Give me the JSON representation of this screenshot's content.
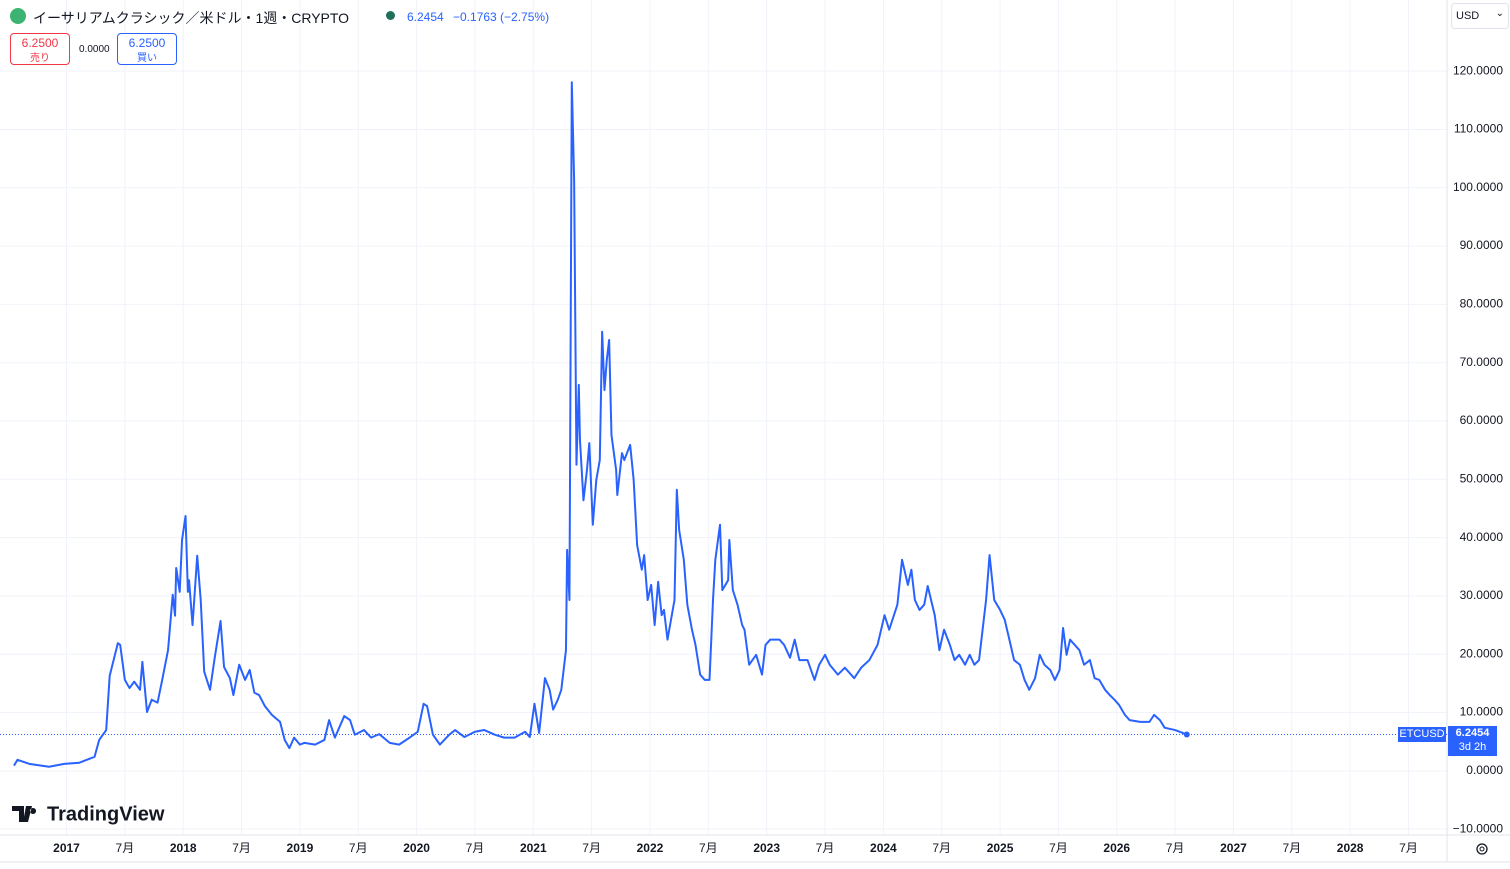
{
  "header": {
    "title": "イーサリアムクラシック／米ドル・1週・CRYPTO",
    "price": "6.2454",
    "change": "−0.1763 (−2.75%)",
    "sell_price": "6.2500",
    "sell_label": "売り",
    "spread": "0.0000",
    "buy_price": "6.2500",
    "buy_label": "買い",
    "currency": "USD",
    "symbol": "ETCUSD",
    "countdown": "3d 2h",
    "logo": "TradingView"
  },
  "chart_data": {
    "type": "line",
    "grid": true,
    "xlim": [
      2016.43,
      2028.83
    ],
    "xticks": [
      {
        "value": 2017,
        "label": "2017"
      },
      {
        "value": 2017.5,
        "label": "7月"
      },
      {
        "value": 2018,
        "label": "2018"
      },
      {
        "value": 2018.5,
        "label": "7月"
      },
      {
        "value": 2019,
        "label": "2019"
      },
      {
        "value": 2019.5,
        "label": "7月"
      },
      {
        "value": 2020,
        "label": "2020"
      },
      {
        "value": 2020.5,
        "label": "7月"
      },
      {
        "value": 2021,
        "label": "2021"
      },
      {
        "value": 2021.5,
        "label": "7月"
      },
      {
        "value": 2022,
        "label": "2022"
      },
      {
        "value": 2022.5,
        "label": "7月"
      },
      {
        "value": 2023,
        "label": "2023"
      },
      {
        "value": 2023.5,
        "label": "7月"
      },
      {
        "value": 2024,
        "label": "2024"
      },
      {
        "value": 2024.5,
        "label": "7月"
      },
      {
        "value": 2025,
        "label": "2025"
      },
      {
        "value": 2025.5,
        "label": "7月"
      },
      {
        "value": 2026,
        "label": "2026"
      },
      {
        "value": 2026.5,
        "label": "7月"
      },
      {
        "value": 2027,
        "label": "2027"
      },
      {
        "value": 2027.5,
        "label": "7月"
      },
      {
        "value": 2028,
        "label": "2028"
      },
      {
        "value": 2028.5,
        "label": "7月"
      }
    ],
    "ylim": [
      -11,
      132.2
    ],
    "yticks": [
      {
        "value": 120,
        "label": "120.0000"
      },
      {
        "value": 110,
        "label": "110.0000"
      },
      {
        "value": 100,
        "label": "100.0000"
      },
      {
        "value": 90,
        "label": "90.0000"
      },
      {
        "value": 80,
        "label": "80.0000"
      },
      {
        "value": 70,
        "label": "70.0000"
      },
      {
        "value": 60,
        "label": "60.0000"
      },
      {
        "value": 50,
        "label": "50.0000"
      },
      {
        "value": 40,
        "label": "40.0000"
      },
      {
        "value": 30,
        "label": "30.0000"
      },
      {
        "value": 20,
        "label": "20.0000"
      },
      {
        "value": 10,
        "label": "10.0000"
      },
      {
        "value": 0,
        "label": "0.0000"
      },
      {
        "value": -10,
        "label": "−10.0000"
      }
    ],
    "series": [
      {
        "color": "#2962ff",
        "x": [
          2016.55,
          2016.58,
          2016.68,
          2016.85,
          2016.98,
          2017.11,
          2017.24,
          2017.28,
          2017.34,
          2017.37,
          2017.44,
          2017.46,
          2017.5,
          2017.54,
          2017.58,
          2017.63,
          2017.65,
          2017.69,
          2017.73,
          2017.78,
          2017.82,
          2017.87,
          2017.91,
          2017.93,
          2017.94,
          2017.97,
          2017.99,
          2018.02,
          2018.04,
          2018.05,
          2018.08,
          2018.12,
          2018.15,
          2018.18,
          2018.23,
          2018.27,
          2018.32,
          2018.35,
          2018.4,
          2018.43,
          2018.48,
          2018.53,
          2018.57,
          2018.61,
          2018.65,
          2018.7,
          2018.76,
          2018.83,
          2018.87,
          2018.91,
          2018.95,
          2019.0,
          2019.04,
          2019.13,
          2019.21,
          2019.25,
          2019.3,
          2019.38,
          2019.43,
          2019.47,
          2019.55,
          2019.61,
          2019.68,
          2019.77,
          2019.85,
          2019.94,
          2020.01,
          2020.06,
          2020.09,
          2020.14,
          2020.2,
          2020.28,
          2020.33,
          2020.41,
          2020.5,
          2020.58,
          2020.67,
          2020.75,
          2020.84,
          2020.93,
          2020.97,
          2021.01,
          2021.05,
          2021.1,
          2021.14,
          2021.17,
          2021.21,
          2021.24,
          2021.28,
          2021.29,
          2021.31,
          2021.33,
          2021.35,
          2021.37,
          2021.39,
          2021.4,
          2021.43,
          2021.46,
          2021.48,
          2021.51,
          2021.54,
          2021.57,
          2021.59,
          2021.61,
          2021.63,
          2021.65,
          2021.67,
          2021.71,
          2021.72,
          2021.76,
          2021.78,
          2021.83,
          2021.86,
          2021.89,
          2021.93,
          2021.95,
          2021.98,
          2022.01,
          2022.04,
          2022.07,
          2022.1,
          2022.12,
          2022.15,
          2022.21,
          2022.23,
          2022.25,
          2022.29,
          2022.32,
          2022.36,
          2022.39,
          2022.43,
          2022.47,
          2022.51,
          2022.54,
          2022.56,
          2022.6,
          2022.62,
          2022.67,
          2022.68,
          2022.71,
          2022.75,
          2022.79,
          2022.81,
          2022.85,
          2022.91,
          2022.96,
          2022.99,
          2023.03,
          2023.07,
          2023.11,
          2023.15,
          2023.2,
          2023.24,
          2023.28,
          2023.35,
          2023.41,
          2023.45,
          2023.5,
          2023.54,
          2023.61,
          2023.67,
          2023.75,
          2023.81,
          2023.88,
          2023.95,
          2024.01,
          2024.05,
          2024.12,
          2024.16,
          2024.21,
          2024.24,
          2024.27,
          2024.31,
          2024.35,
          2024.38,
          2024.44,
          2024.48,
          2024.52,
          2024.57,
          2024.61,
          2024.65,
          2024.7,
          2024.74,
          2024.78,
          2024.82,
          2024.88,
          2024.91,
          2024.95,
          2025.0,
          2025.04,
          2025.08,
          2025.12,
          2025.17,
          2025.21,
          2025.25,
          2025.3,
          2025.34,
          2025.38,
          2025.43,
          2025.47,
          2025.51,
          2025.54,
          2025.57,
          2025.6,
          2025.64,
          2025.68,
          2025.72,
          2025.77,
          2025.81,
          2025.85,
          2025.9,
          2025.94,
          2025.98,
          2026.02,
          2026.07,
          2026.11,
          2026.2,
          2026.28,
          2026.32,
          2026.37,
          2026.41,
          2026.5,
          2026.54,
          2026.6
        ],
        "values": [
          0.9,
          1.9,
          1.2,
          0.7,
          1.2,
          1.4,
          2.4,
          5.3,
          7.0,
          16.3,
          21.9,
          21.6,
          15.6,
          14.2,
          15.3,
          13.9,
          18.7,
          10.1,
          12.2,
          11.7,
          15.6,
          20.7,
          30.2,
          26.6,
          34.8,
          30.7,
          39.6,
          43.7,
          30.7,
          32.7,
          25.0,
          36.9,
          29.3,
          17.0,
          13.9,
          19.4,
          25.7,
          17.8,
          15.9,
          13.0,
          18.2,
          15.6,
          17.3,
          13.4,
          13.0,
          11.1,
          9.6,
          8.4,
          5.3,
          3.9,
          5.7,
          4.5,
          4.8,
          4.5,
          5.3,
          8.7,
          5.7,
          9.4,
          8.7,
          6.2,
          7.0,
          5.7,
          6.3,
          4.8,
          4.5,
          5.7,
          6.7,
          11.5,
          11.1,
          6.2,
          4.5,
          6.2,
          7.0,
          5.8,
          6.7,
          7.0,
          6.2,
          5.7,
          5.7,
          6.7,
          5.8,
          11.5,
          6.5,
          15.9,
          13.9,
          10.5,
          12.2,
          13.9,
          20.7,
          37.9,
          29.3,
          118.1,
          101.3,
          52.5,
          66.2,
          56.7,
          46.4,
          51.6,
          56.2,
          42.2,
          49.9,
          53.3,
          75.3,
          65.3,
          70.5,
          73.9,
          57.6,
          51.6,
          47.3,
          54.5,
          53.3,
          55.9,
          49.9,
          38.7,
          34.5,
          37.0,
          29.3,
          31.9,
          25.0,
          32.4,
          26.7,
          27.6,
          22.5,
          29.3,
          48.2,
          41.3,
          36.2,
          28.5,
          24.2,
          21.6,
          16.5,
          15.6,
          15.6,
          29.3,
          36.2,
          42.2,
          31.0,
          32.7,
          39.6,
          31.0,
          28.5,
          25.0,
          24.2,
          18.2,
          19.9,
          16.5,
          21.6,
          22.5,
          22.5,
          22.5,
          21.6,
          19.4,
          22.5,
          19.0,
          19.0,
          15.6,
          18.2,
          19.9,
          18.2,
          16.5,
          17.7,
          15.9,
          17.7,
          19.0,
          21.6,
          26.7,
          24.2,
          28.5,
          36.2,
          31.9,
          34.5,
          29.3,
          27.6,
          28.5,
          31.7,
          26.7,
          20.7,
          24.2,
          21.6,
          19.0,
          19.9,
          18.2,
          19.9,
          18.2,
          19.0,
          29.3,
          37.0,
          29.3,
          27.6,
          25.9,
          22.5,
          19.0,
          18.2,
          15.6,
          13.9,
          15.9,
          19.9,
          18.2,
          17.3,
          15.6,
          17.3,
          24.5,
          19.9,
          22.5,
          21.6,
          20.7,
          18.2,
          19.0,
          15.9,
          15.6,
          13.9,
          13.0,
          12.2,
          11.3,
          9.6,
          8.7,
          8.4,
          8.4,
          9.6,
          8.7,
          7.4,
          7.0,
          6.7,
          6.2454
        ]
      }
    ]
  }
}
